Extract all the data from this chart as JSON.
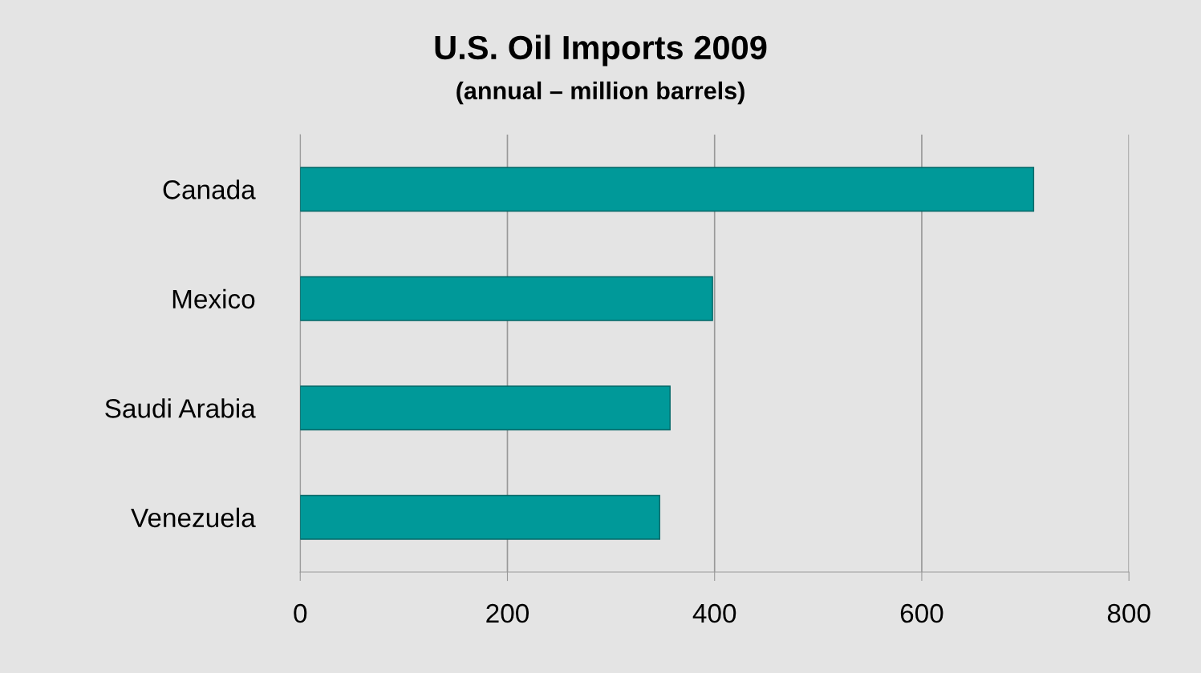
{
  "chart_data": {
    "type": "bar",
    "orientation": "horizontal",
    "title": "U.S. Oil Imports 2009",
    "subtitle": "(annual – million barrels)",
    "categories": [
      "Canada",
      "Mexico",
      "Saudi Arabia",
      "Venezuela"
    ],
    "values": [
      708,
      398,
      357,
      347
    ],
    "color": "#009999",
    "xlim": [
      0,
      800
    ],
    "xticks": [
      0,
      200,
      400,
      600,
      800
    ],
    "grid": "x"
  }
}
